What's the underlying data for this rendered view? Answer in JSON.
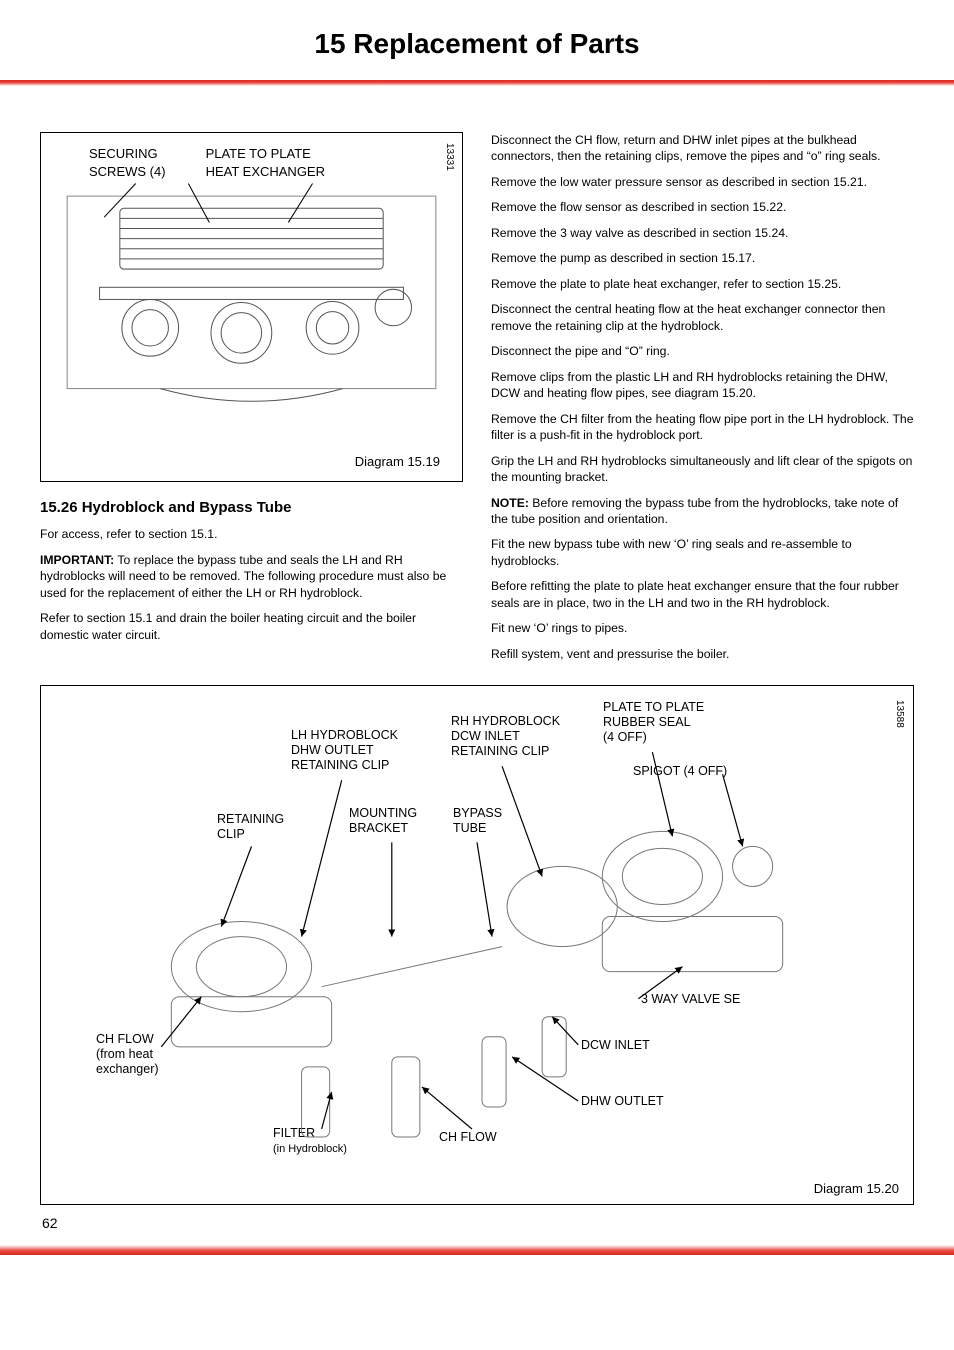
{
  "page_number": "62",
  "header": {
    "title": "15  Replacement of Parts"
  },
  "diagram_top": {
    "figure_ref": "13331",
    "caption": "Diagram 15.19",
    "labels": {
      "securing_screws": "SECURING\nSCREWS (4)",
      "plate_to_plate": "PLATE TO PLATE\nHEAT EXCHANGER"
    }
  },
  "section": {
    "heading": "15.26 Hydroblock and Bypass Tube",
    "left_paragraphs": [
      "For access, refer to section 15.1.",
      "<b>IMPORTANT:</b>  To replace the bypass tube and seals the LH and RH hydroblocks will need to be removed. The following procedure must also be used for the replacement of either the LH or RH hydroblock.",
      "Refer to section 15.1 and drain the boiler heating circuit and the boiler domestic water circuit."
    ],
    "right_paragraphs": [
      "Disconnect the CH flow, return and DHW inlet pipes at the bulkhead connectors, then the retaining clips, remove the pipes and “o” ring seals.",
      "Remove the low water pressure sensor as described in section 15.21.",
      "Remove the flow sensor as described in section 15.22.",
      "Remove the 3 way valve as described in section 15.24.",
      "Remove the pump as described in section 15.17.",
      "Remove the plate to plate heat exchanger, refer to section 15.25.",
      "Disconnect the central heating flow at the heat exchanger connector then remove the retaining clip at the hydroblock.",
      "Disconnect the pipe and “O” ring.",
      "Remove clips from the plastic LH and RH hydroblocks retaining the DHW, DCW and heating flow pipes, see diagram 15.20.",
      "Remove the CH filter from the heating flow pipe port in the LH hydroblock. The filter is a push-fit in the hydroblock port.",
      "Grip the LH and RH hydroblocks simultaneously and  lift clear of the spigots on the mounting bracket.",
      "<b>NOTE:</b>  Before removing the bypass tube from the hydroblocks, take note of the tube position and orientation.",
      "Fit the new bypass tube with new ‘O’ ring seals and re-assemble to hydroblocks.",
      "Before refitting the plate to plate heat exchanger ensure that the four rubber seals are in place, two in the LH and two in the RH hydroblock.",
      "Fit new ‘O’ rings to pipes.",
      "Refill system, vent and pressurise the boiler."
    ]
  },
  "diagram_bottom": {
    "figure_ref": "13588",
    "caption": "Diagram 15.20",
    "labels": {
      "lh_hydroblock": "LH HYDROBLOCK\nDHW OUTLET\nRETAINING CLIP",
      "rh_hydroblock": "RH HYDROBLOCK\nDCW INLET\nRETAINING CLIP",
      "plate_rubber_seal": "PLATE TO PLATE\nRUBBER SEAL\n(4 OFF)",
      "spigot": "SPIGOT (4 OFF)",
      "retaining_clip": "RETAINING\nCLIP",
      "mounting_bracket": "MOUNTING\nBRACKET",
      "bypass_tube": "BYPASS\nTUBE",
      "ch_flow_from": "CH FLOW\n(from heat\nexchanger)",
      "filter": "FILTER",
      "filter_sub": "(in Hydroblock)",
      "ch_flow": "CH FLOW",
      "dhw_outlet": "DHW OUTLET",
      "dcw_inlet": "DCW INLET",
      "three_way_valve": "3 WAY VALVE SE"
    }
  }
}
